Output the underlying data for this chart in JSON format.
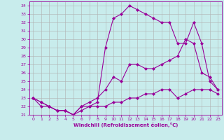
{
  "xlabel": "Windchill (Refroidissement éolien,°C)",
  "background_color": "#c8ecec",
  "line_color": "#990099",
  "grid_color": "#b0b0b0",
  "xlim": [
    -0.5,
    23.5
  ],
  "ylim": [
    21,
    34.5
  ],
  "xticks": [
    0,
    1,
    2,
    3,
    4,
    5,
    6,
    7,
    8,
    9,
    10,
    11,
    12,
    13,
    14,
    15,
    16,
    17,
    18,
    19,
    20,
    21,
    22,
    23
  ],
  "yticks": [
    21,
    22,
    23,
    24,
    25,
    26,
    27,
    28,
    29,
    30,
    31,
    32,
    33,
    34
  ],
  "line1_x": [
    0,
    1,
    2,
    3,
    4,
    5,
    6,
    7,
    8,
    9,
    10,
    11,
    12,
    13,
    14,
    15,
    16,
    17,
    18,
    19,
    20,
    21,
    22,
    23
  ],
  "line1_y": [
    23,
    22.5,
    22,
    21.5,
    21.5,
    21,
    22,
    22.5,
    23,
    24,
    25.5,
    25,
    27,
    27,
    26.5,
    26.5,
    27,
    27.5,
    28,
    30,
    29.5,
    26,
    25.5,
    24
  ],
  "line2_x": [
    0,
    1,
    2,
    3,
    4,
    5,
    6,
    7,
    8,
    9,
    10,
    11,
    12,
    13,
    14,
    15,
    16,
    17,
    18,
    19,
    20,
    21,
    22,
    23
  ],
  "line2_y": [
    23,
    22,
    22,
    21.5,
    21.5,
    21,
    21.5,
    22,
    22,
    22,
    22.5,
    22.5,
    23,
    23,
    23.5,
    23.5,
    24,
    24,
    23,
    23.5,
    24,
    24,
    24,
    23.5
  ],
  "line3_x": [
    0,
    1,
    2,
    3,
    4,
    5,
    6,
    7,
    8,
    9,
    10,
    11,
    12,
    13,
    14,
    15,
    16,
    17,
    18,
    19,
    20,
    21,
    22,
    23
  ],
  "line3_y": [
    23,
    22.5,
    22,
    21.5,
    21.5,
    21,
    22,
    22,
    22.5,
    29,
    32.5,
    33,
    34,
    33.5,
    33,
    32.5,
    32,
    32,
    29.5,
    29.5,
    32,
    29.5,
    25,
    24
  ]
}
